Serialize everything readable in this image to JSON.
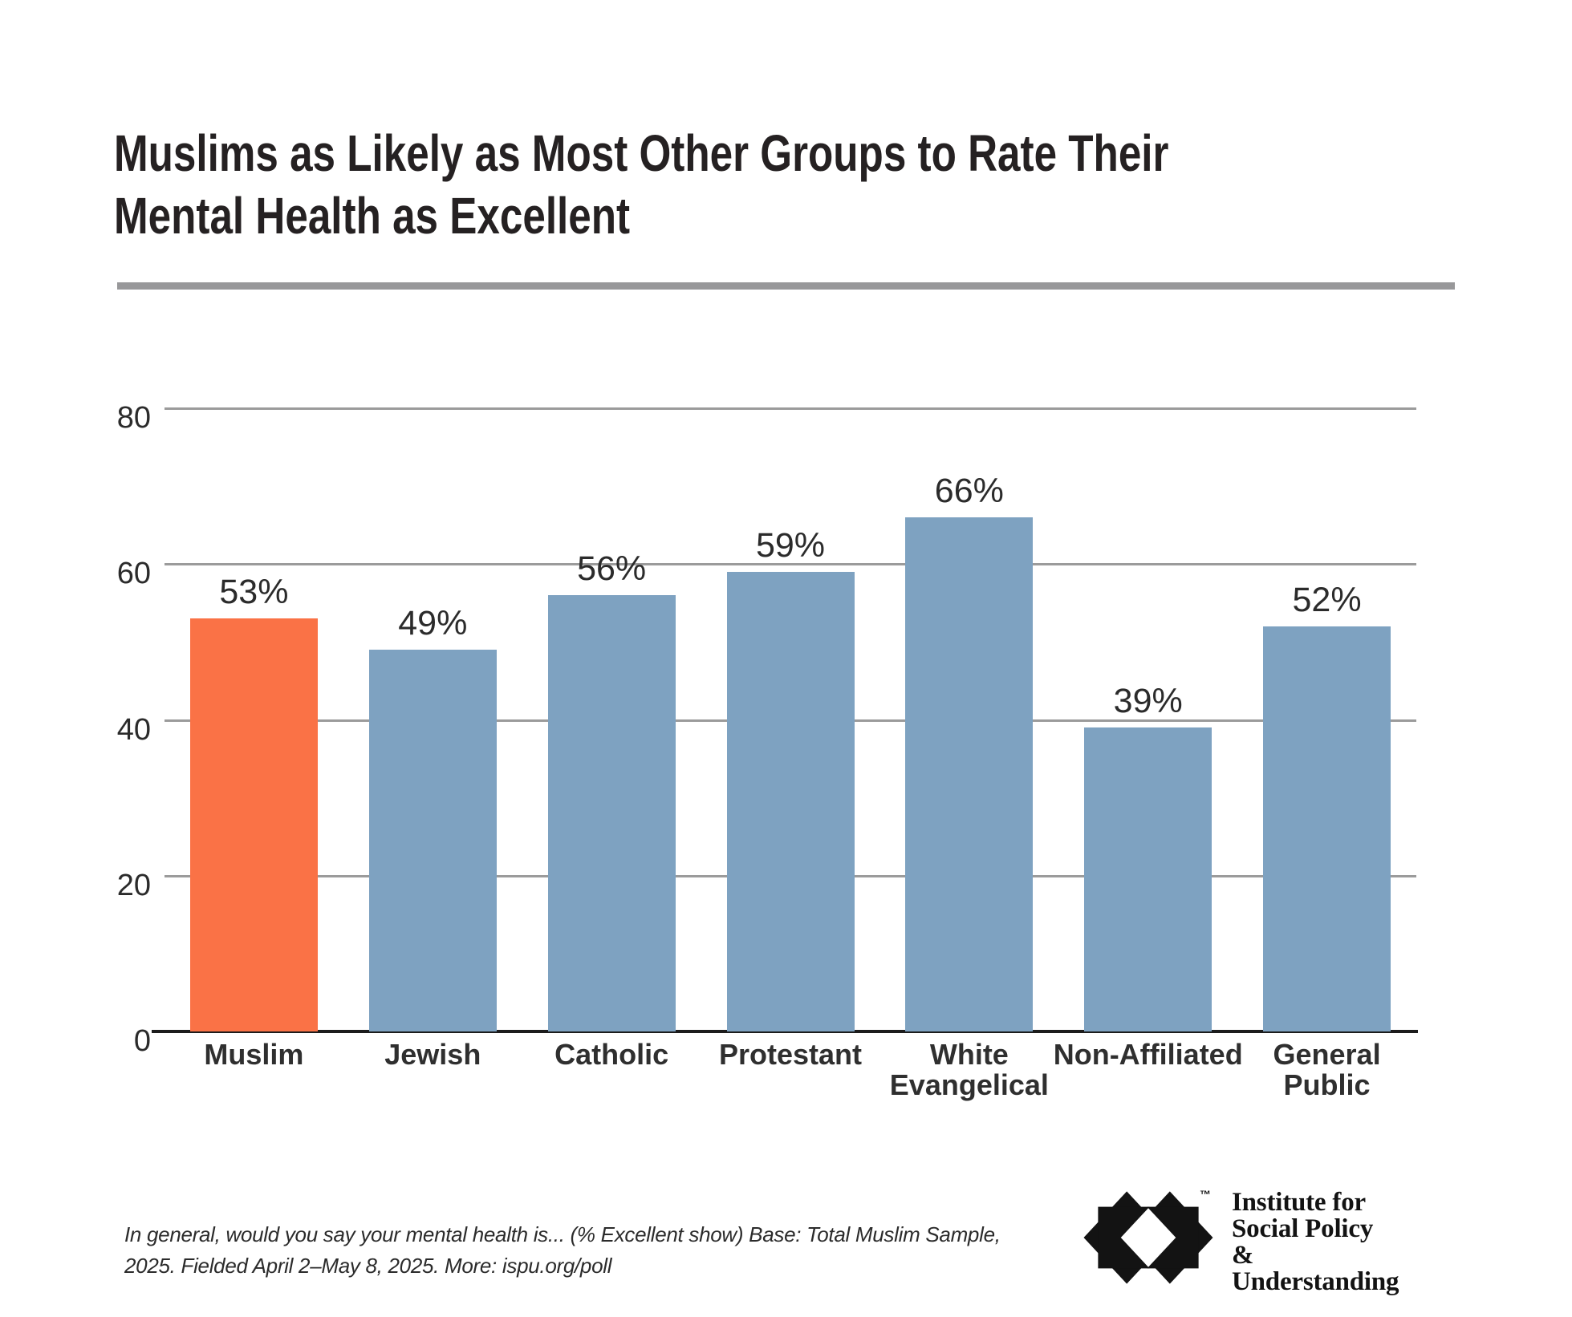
{
  "header": {
    "title": "Muslims as Likely as Most Other Groups to Rate Their\nMental Health as Excellent"
  },
  "chart_data": {
    "type": "bar",
    "title": "Muslims as Likely as Most Other Groups to Rate Their Mental Health as Excellent",
    "categories": [
      "Muslim",
      "Jewish",
      "Catholic",
      "Protestant",
      "White\nEvangelical",
      "Non-Affiliated",
      "General\nPublic"
    ],
    "values": [
      53,
      49,
      56,
      59,
      66,
      39,
      52
    ],
    "value_labels": [
      "53%",
      "49%",
      "56%",
      "59%",
      "66%",
      "39%",
      "52%"
    ],
    "bar_colors": [
      "#FA7246",
      "#7EA2C1",
      "#7EA2C1",
      "#7EA2C1",
      "#7EA2C1",
      "#7EA2C1",
      "#7EA2C1"
    ],
    "highlight_category": "Muslim",
    "y_ticks": [
      80,
      60,
      40,
      20,
      0
    ],
    "ylim": [
      0,
      80
    ],
    "xlabel": "",
    "ylabel": "",
    "grid": true,
    "legend": "none"
  },
  "footnote": "In general, would you say your mental health is... (% Excellent show) Base: Total Muslim Sample,\n2025. Fielded April 2–May 8, 2025. More: ispu.org/poll",
  "logo": {
    "name": "Institute for Social Policy & Understanding",
    "text": "Institute for\nSocial Policy &\nUnderstanding",
    "trademark": "™"
  },
  "colors": {
    "highlight": "#FA7246",
    "bar_default": "#7EA2C1",
    "gridline": "#9B9B9B",
    "axis_line": "#1C1C1C",
    "divider": "#98989A",
    "text": "#2B2B2B",
    "title_text": "#252122",
    "logo_black": "#131313"
  }
}
